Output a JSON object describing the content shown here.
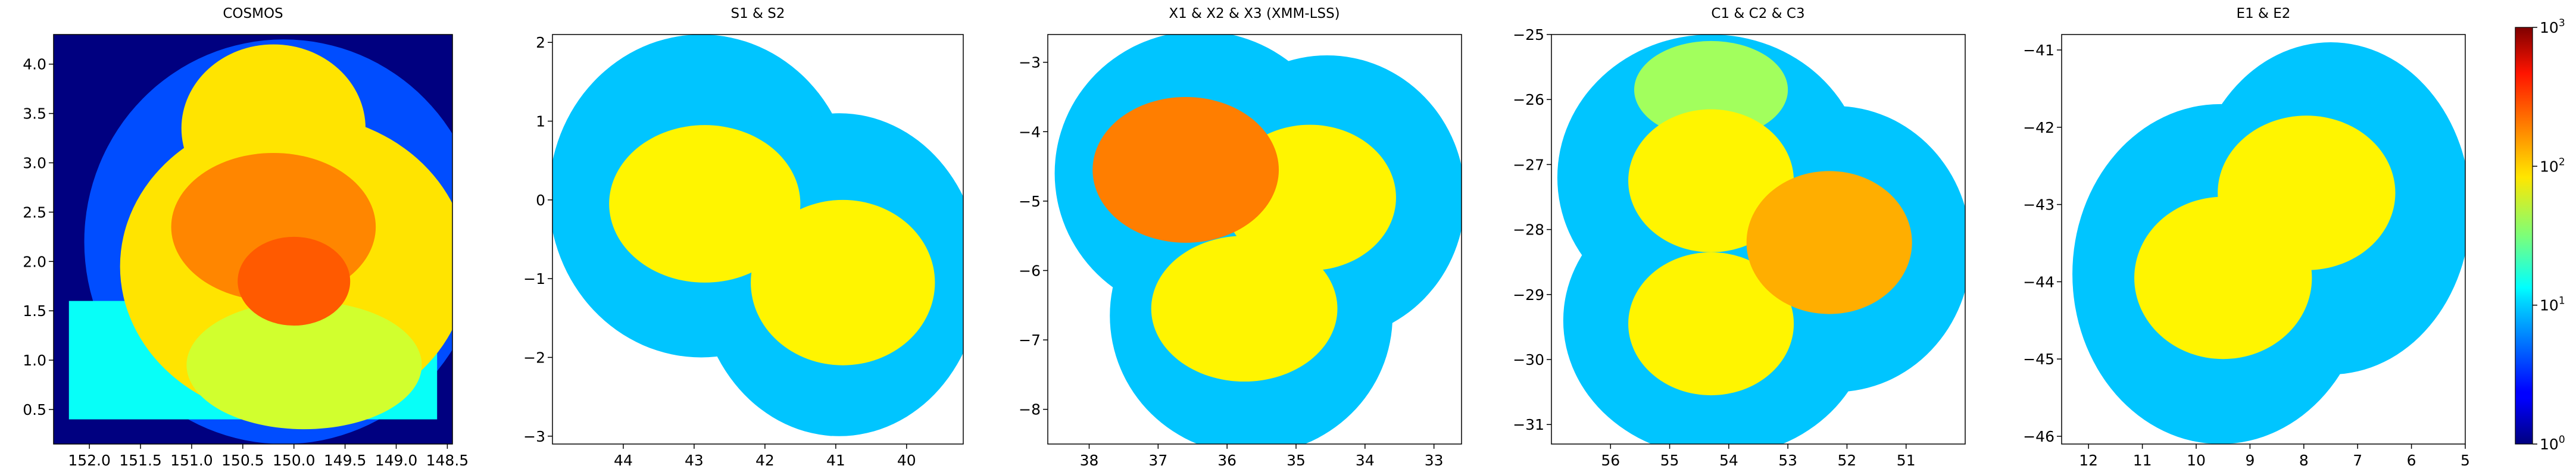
{
  "figure": {
    "colorbar_scale": "log",
    "colorbar_range": [
      1,
      1000
    ],
    "colormap": "jet"
  },
  "colorbar": {
    "ticks": [
      {
        "value": 1,
        "base": "10",
        "exp": "0"
      },
      {
        "value": 10,
        "base": "10",
        "exp": "1"
      },
      {
        "value": 100,
        "base": "10",
        "exp": "2"
      },
      {
        "value": 1000,
        "base": "10",
        "exp": "3"
      }
    ]
  },
  "chart_data": [
    {
      "type": "heatmap",
      "title": "COSMOS",
      "xlim": [
        152.35,
        148.45
      ],
      "ylim": [
        0.15,
        4.3
      ],
      "xticks": [
        {
          "v": 152.0,
          "label": "152.0"
        },
        {
          "v": 151.5,
          "label": "151.5"
        },
        {
          "v": 151.0,
          "label": "151.0"
        },
        {
          "v": 150.5,
          "label": "150.5"
        },
        {
          "v": 150.0,
          "label": "150.0"
        },
        {
          "v": 149.5,
          "label": "149.5"
        },
        {
          "v": 149.0,
          "label": "149.0"
        },
        {
          "v": 148.5,
          "label": "148.5"
        }
      ],
      "yticks": [
        {
          "v": 0.5,
          "label": "0.5"
        },
        {
          "v": 1.0,
          "label": "1.0"
        },
        {
          "v": 1.5,
          "label": "1.5"
        },
        {
          "v": 2.0,
          "label": "2.0"
        },
        {
          "v": 2.5,
          "label": "2.5"
        },
        {
          "v": 3.0,
          "label": "3.0"
        },
        {
          "v": 3.5,
          "label": "3.5"
        },
        {
          "v": 4.0,
          "label": "4.0"
        }
      ],
      "background_value": 1,
      "regions": [
        {
          "shape": "circle",
          "cx": 150.1,
          "cy": 2.2,
          "rx": 1.95,
          "ry": 2.05,
          "value": 4
        },
        {
          "shape": "rect",
          "x": [
            152.2,
            148.6
          ],
          "y": [
            0.4,
            1.6
          ],
          "value": 14
        },
        {
          "shape": "ellipse",
          "cx": 150.0,
          "cy": 1.95,
          "rx": 1.7,
          "ry": 1.55,
          "value": 90
        },
        {
          "shape": "ellipse",
          "cx": 150.2,
          "cy": 3.35,
          "rx": 0.9,
          "ry": 0.85,
          "value": 90
        },
        {
          "shape": "ellipse",
          "cx": 149.9,
          "cy": 0.95,
          "rx": 1.15,
          "ry": 0.65,
          "value": 55
        },
        {
          "shape": "ellipse",
          "cx": 150.2,
          "cy": 2.35,
          "rx": 1.0,
          "ry": 0.75,
          "value": 170
        },
        {
          "shape": "ellipse",
          "cx": 150.0,
          "cy": 1.8,
          "rx": 0.55,
          "ry": 0.45,
          "value": 230
        }
      ]
    },
    {
      "type": "heatmap",
      "title": "S1 & S2",
      "xlim": [
        45.0,
        39.2
      ],
      "ylim": [
        -3.1,
        2.1
      ],
      "xticks": [
        {
          "v": 44,
          "label": "44"
        },
        {
          "v": 43,
          "label": "43"
        },
        {
          "v": 42,
          "label": "42"
        },
        {
          "v": 41,
          "label": "41"
        },
        {
          "v": 40,
          "label": "40"
        }
      ],
      "yticks": [
        {
          "v": -3,
          "label": "−3"
        },
        {
          "v": -2,
          "label": "−2"
        },
        {
          "v": -1,
          "label": "−1"
        },
        {
          "v": 0,
          "label": "0"
        },
        {
          "v": 1,
          "label": "1"
        },
        {
          "v": 2,
          "label": "2"
        }
      ],
      "background_value": null,
      "regions": [
        {
          "shape": "circle",
          "cx": 42.9,
          "cy": 0.05,
          "rx": 2.15,
          "ry": 2.05,
          "value": 9
        },
        {
          "shape": "circle",
          "cx": 40.95,
          "cy": -0.95,
          "rx": 2.0,
          "ry": 2.05,
          "value": 9
        },
        {
          "shape": "ellipse",
          "cx": 42.85,
          "cy": -0.05,
          "rx": 1.35,
          "ry": 1.0,
          "value": 80
        },
        {
          "shape": "ellipse",
          "cx": 40.9,
          "cy": -1.05,
          "rx": 1.3,
          "ry": 1.05,
          "value": 80
        }
      ]
    },
    {
      "type": "heatmap",
      "title": "X1 & X2 & X3 (XMM-LSS)",
      "xlim": [
        38.6,
        32.6
      ],
      "ylim": [
        -8.5,
        -2.6
      ],
      "xticks": [
        {
          "v": 38,
          "label": "38"
        },
        {
          "v": 37,
          "label": "37"
        },
        {
          "v": 36,
          "label": "36"
        },
        {
          "v": 35,
          "label": "35"
        },
        {
          "v": 34,
          "label": "34"
        },
        {
          "v": 33,
          "label": "33"
        }
      ],
      "yticks": [
        {
          "v": -8,
          "label": "−8"
        },
        {
          "v": -7,
          "label": "−7"
        },
        {
          "v": -6,
          "label": "−6"
        },
        {
          "v": -5,
          "label": "−5"
        },
        {
          "v": -4,
          "label": "−4"
        },
        {
          "v": -3,
          "label": "−3"
        }
      ],
      "background_value": null,
      "regions": [
        {
          "shape": "circle",
          "cx": 36.4,
          "cy": -4.6,
          "rx": 2.1,
          "ry": 2.05,
          "value": 9
        },
        {
          "shape": "circle",
          "cx": 34.55,
          "cy": -4.95,
          "rx": 2.0,
          "ry": 2.05,
          "value": 9
        },
        {
          "shape": "circle",
          "cx": 35.65,
          "cy": -6.65,
          "rx": 2.05,
          "ry": 2.0,
          "value": 9
        },
        {
          "shape": "ellipse",
          "cx": 34.8,
          "cy": -4.95,
          "rx": 1.25,
          "ry": 1.05,
          "value": 80
        },
        {
          "shape": "ellipse",
          "cx": 35.75,
          "cy": -6.55,
          "rx": 1.35,
          "ry": 1.05,
          "value": 80
        },
        {
          "shape": "ellipse",
          "cx": 36.6,
          "cy": -4.55,
          "rx": 1.35,
          "ry": 1.05,
          "value": 180
        }
      ]
    },
    {
      "type": "heatmap",
      "title": "C1 & C2 & C3",
      "xlim": [
        57.0,
        50.0
      ],
      "ylim": [
        -31.3,
        -25.0
      ],
      "xticks": [
        {
          "v": 56,
          "label": "56"
        },
        {
          "v": 55,
          "label": "55"
        },
        {
          "v": 54,
          "label": "54"
        },
        {
          "v": 53,
          "label": "53"
        },
        {
          "v": 52,
          "label": "52"
        },
        {
          "v": 51,
          "label": "51"
        }
      ],
      "yticks": [
        {
          "v": -31,
          "label": "−31"
        },
        {
          "v": -30,
          "label": "−30"
        },
        {
          "v": -29,
          "label": "−29"
        },
        {
          "v": -28,
          "label": "−28"
        },
        {
          "v": -27,
          "label": "−27"
        },
        {
          "v": -26,
          "label": "−26"
        },
        {
          "v": -25,
          "label": "−25"
        }
      ],
      "background_value": null,
      "regions": [
        {
          "shape": "circle",
          "cx": 54.3,
          "cy": -27.2,
          "rx": 2.6,
          "ry": 2.2,
          "value": 9
        },
        {
          "shape": "circle",
          "cx": 52.2,
          "cy": -28.3,
          "rx": 2.3,
          "ry": 2.2,
          "value": 9
        },
        {
          "shape": "circle",
          "cx": 54.2,
          "cy": -29.4,
          "rx": 2.6,
          "ry": 2.1,
          "value": 9
        },
        {
          "shape": "ellipse",
          "cx": 54.3,
          "cy": -25.85,
          "rx": 1.3,
          "ry": 0.75,
          "value": 40
        },
        {
          "shape": "ellipse",
          "cx": 54.3,
          "cy": -27.25,
          "rx": 1.4,
          "ry": 1.1,
          "value": 80
        },
        {
          "shape": "ellipse",
          "cx": 54.3,
          "cy": -29.45,
          "rx": 1.4,
          "ry": 1.1,
          "value": 80
        },
        {
          "shape": "ellipse",
          "cx": 52.3,
          "cy": -28.2,
          "rx": 1.4,
          "ry": 1.1,
          "value": 130
        }
      ]
    },
    {
      "type": "heatmap",
      "title": "E1 & E2",
      "xlim": [
        12.5,
        5.0
      ],
      "ylim": [
        -46.1,
        -40.8
      ],
      "xticks": [
        {
          "v": 12,
          "label": "12"
        },
        {
          "v": 11,
          "label": "11"
        },
        {
          "v": 10,
          "label": "10"
        },
        {
          "v": 9,
          "label": "9"
        },
        {
          "v": 8,
          "label": "8"
        },
        {
          "v": 7,
          "label": "7"
        },
        {
          "v": 6,
          "label": "6"
        },
        {
          "v": 5,
          "label": "5"
        }
      ],
      "yticks": [
        {
          "v": -46,
          "label": "−46"
        },
        {
          "v": -45,
          "label": "−45"
        },
        {
          "v": -44,
          "label": "−44"
        },
        {
          "v": -43,
          "label": "−43"
        },
        {
          "v": -42,
          "label": "−42"
        },
        {
          "v": -41,
          "label": "−41"
        }
      ],
      "background_value": null,
      "regions": [
        {
          "shape": "circle",
          "cx": 9.55,
          "cy": -43.9,
          "rx": 2.75,
          "ry": 2.2,
          "value": 9
        },
        {
          "shape": "circle",
          "cx": 7.5,
          "cy": -43.05,
          "rx": 2.6,
          "ry": 2.15,
          "value": 9
        },
        {
          "shape": "ellipse",
          "cx": 7.95,
          "cy": -42.85,
          "rx": 1.65,
          "ry": 1.0,
          "value": 80
        },
        {
          "shape": "ellipse",
          "cx": 9.5,
          "cy": -43.95,
          "rx": 1.65,
          "ry": 1.05,
          "value": 80
        }
      ]
    }
  ]
}
